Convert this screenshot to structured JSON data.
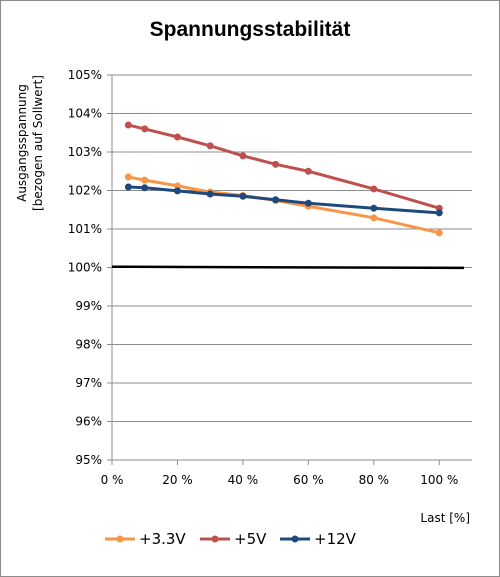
{
  "chart_data": {
    "type": "line",
    "title": "Spannungsstabilität",
    "xlabel": "Last [%]",
    "ylabel_line1": "Ausgangsspannung",
    "ylabel_line2": "[bezogen auf Sollwert]",
    "xlim": [
      0,
      110
    ],
    "ylim": [
      95,
      105
    ],
    "x_ticks": [
      0,
      20,
      40,
      60,
      80,
      100
    ],
    "x_tick_labels": [
      "0 %",
      "20 %",
      "40 %",
      "60 %",
      "80 %",
      "100 %"
    ],
    "y_ticks": [
      95,
      96,
      97,
      98,
      99,
      100,
      101,
      102,
      103,
      104,
      105
    ],
    "y_tick_labels": [
      "95%",
      "96%",
      "97%",
      "98%",
      "99%",
      "100%",
      "101%",
      "102%",
      "103%",
      "104%",
      "105%"
    ],
    "grid": "horizontal",
    "legend_position": "bottom",
    "x": [
      5,
      10,
      20,
      30,
      40,
      50,
      60,
      80,
      100
    ],
    "series": [
      {
        "name": "+3.3V",
        "color": "#f79646",
        "values": [
          102.35,
          102.27,
          102.12,
          101.96,
          101.87,
          101.74,
          101.59,
          101.29,
          100.9
        ]
      },
      {
        "name": "+5V",
        "color": "#c0504d",
        "values": [
          103.7,
          103.6,
          103.39,
          103.16,
          102.9,
          102.68,
          102.5,
          102.04,
          101.54
        ]
      },
      {
        "name": "+12V",
        "color": "#1f497d",
        "values": [
          102.09,
          102.07,
          101.99,
          101.91,
          101.85,
          101.76,
          101.67,
          101.54,
          101.42
        ]
      }
    ],
    "reference_line": {
      "y_start": 100.02,
      "y_end": 99.99,
      "color": "#000000"
    }
  }
}
